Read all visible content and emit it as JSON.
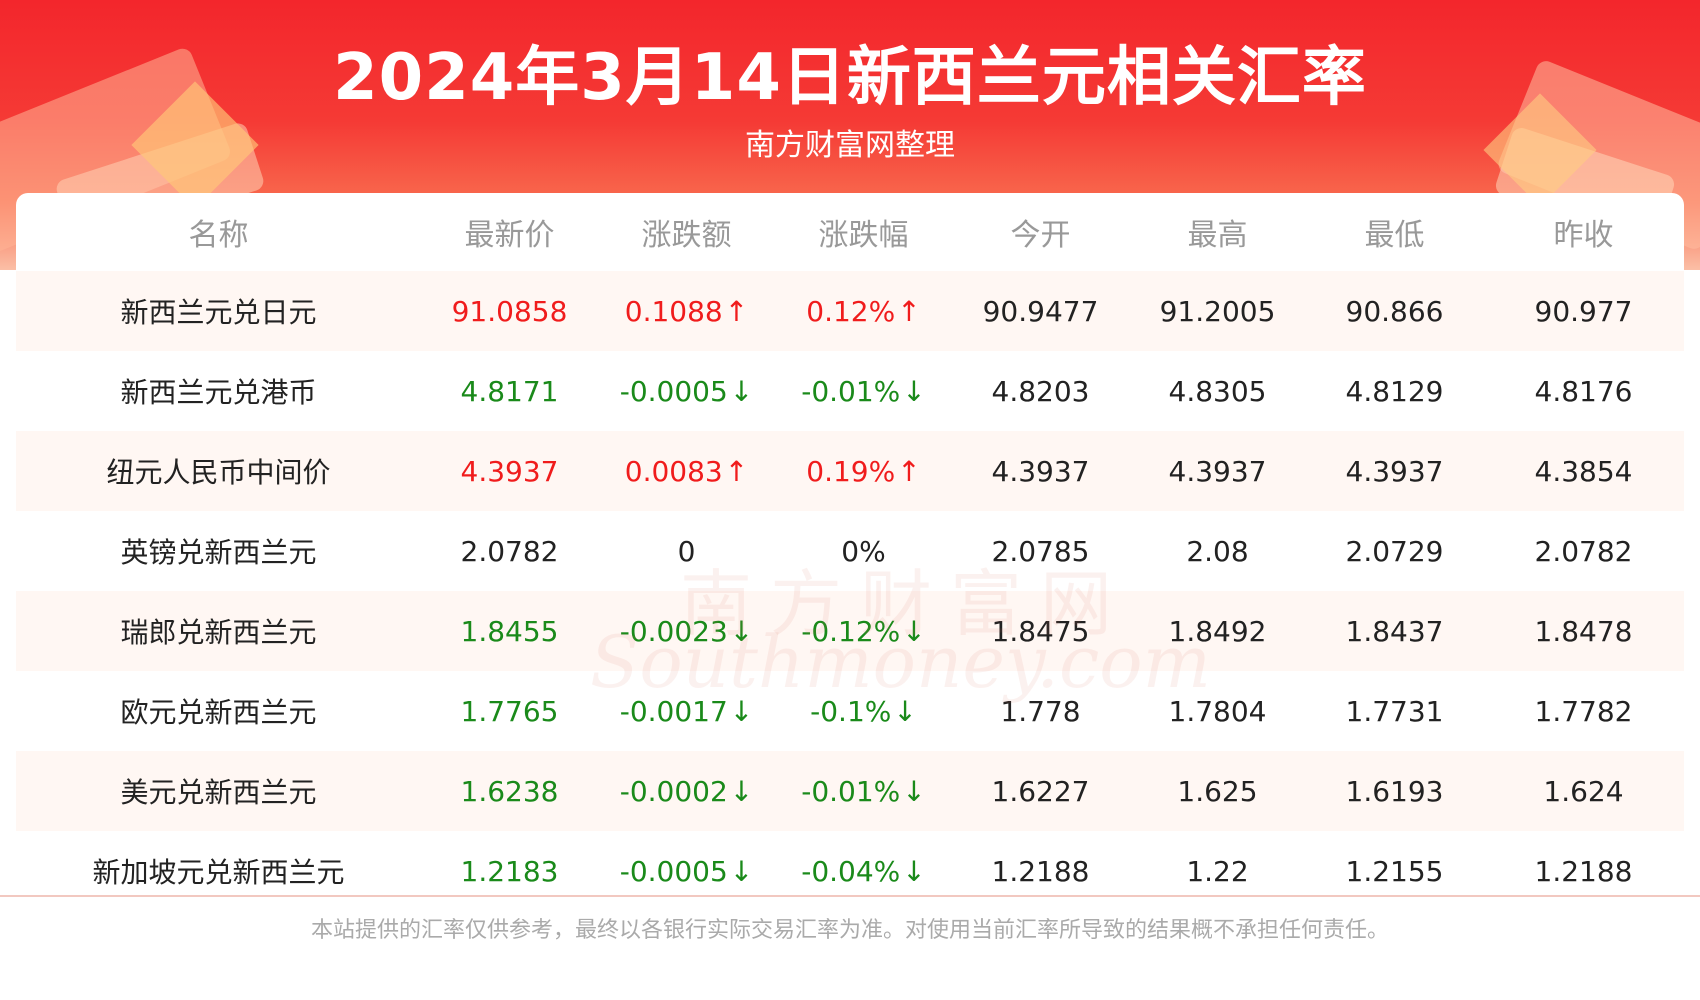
{
  "header": {
    "title": "2024年3月14日新西兰元相关汇率",
    "subtitle": "南方财富网整理"
  },
  "table": {
    "columns": [
      "名称",
      "最新价",
      "涨跌额",
      "涨跌幅",
      "今开",
      "最高",
      "最低",
      "昨收"
    ],
    "rows": [
      {
        "name": "新西兰元兑日元",
        "latest": "91.0858",
        "change": "0.1088",
        "pct": "0.12%",
        "open": "90.9477",
        "high": "91.2005",
        "low": "90.866",
        "prev": "90.977",
        "trend": "up"
      },
      {
        "name": "新西兰元兑港币",
        "latest": "4.8171",
        "change": "-0.0005",
        "pct": "-0.01%",
        "open": "4.8203",
        "high": "4.8305",
        "low": "4.8129",
        "prev": "4.8176",
        "trend": "down"
      },
      {
        "name": "纽元人民币中间价",
        "latest": "4.3937",
        "change": "0.0083",
        "pct": "0.19%",
        "open": "4.3937",
        "high": "4.3937",
        "low": "4.3937",
        "prev": "4.3854",
        "trend": "up"
      },
      {
        "name": "英镑兑新西兰元",
        "latest": "2.0782",
        "change": "0",
        "pct": "0%",
        "open": "2.0785",
        "high": "2.08",
        "low": "2.0729",
        "prev": "2.0782",
        "trend": "flat"
      },
      {
        "name": "瑞郎兑新西兰元",
        "latest": "1.8455",
        "change": "-0.0023",
        "pct": "-0.12%",
        "open": "1.8475",
        "high": "1.8492",
        "low": "1.8437",
        "prev": "1.8478",
        "trend": "down"
      },
      {
        "name": "欧元兑新西兰元",
        "latest": "1.7765",
        "change": "-0.0017",
        "pct": "-0.1%",
        "open": "1.778",
        "high": "1.7804",
        "low": "1.7731",
        "prev": "1.7782",
        "trend": "down"
      },
      {
        "name": "美元兑新西兰元",
        "latest": "1.6238",
        "change": "-0.0002",
        "pct": "-0.01%",
        "open": "1.6227",
        "high": "1.625",
        "low": "1.6193",
        "prev": "1.624",
        "trend": "down"
      },
      {
        "name": "新加坡元兑新西兰元",
        "latest": "1.2183",
        "change": "-0.0005",
        "pct": "-0.04%",
        "open": "1.2188",
        "high": "1.22",
        "low": "1.2155",
        "prev": "1.2188",
        "trend": "down"
      }
    ]
  },
  "arrows": {
    "up": "↑",
    "down": "↓"
  },
  "watermark": {
    "cn": "南方财富网",
    "en": "Southmoney.com"
  },
  "footer": {
    "disclaimer": "本站提供的汇率仅供参考，最终以各银行实际交易汇率为准。对使用当前汇率所导致的结果概不承担任何责任。"
  },
  "colors": {
    "up": "#f01c1c",
    "down": "#1a8a1a",
    "flat": "#222222",
    "header_red": "#f3262c"
  }
}
